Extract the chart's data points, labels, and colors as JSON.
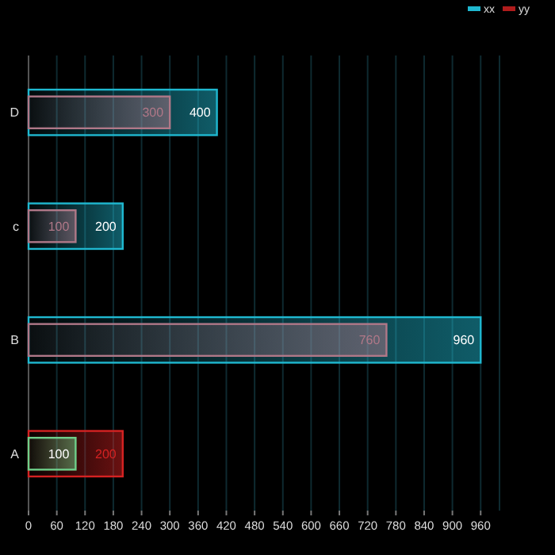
{
  "chart_data": {
    "type": "bar",
    "orientation": "horizontal",
    "categories": [
      "D",
      "c",
      "B",
      "A"
    ],
    "series": [
      {
        "name": "xx",
        "color": "#1fb8d0",
        "colors": [
          "#1fb8d0",
          "#1fb8d0",
          "#1fb8d0",
          "#6fcf8a"
        ],
        "values": [
          400,
          200,
          960,
          100
        ]
      },
      {
        "name": "yy",
        "color": "#b01c1c",
        "colors": [
          "#b07888",
          "#b07888",
          "#b07888",
          "#d42222"
        ],
        "values": [
          300,
          100,
          760,
          200
        ]
      }
    ],
    "xlim": [
      0,
      1000
    ],
    "xticks": [
      0,
      60,
      120,
      180,
      240,
      300,
      360,
      420,
      480,
      540,
      600,
      660,
      720,
      780,
      840,
      900,
      960
    ],
    "grid": "x",
    "legend": "top right",
    "data_labels": true
  }
}
